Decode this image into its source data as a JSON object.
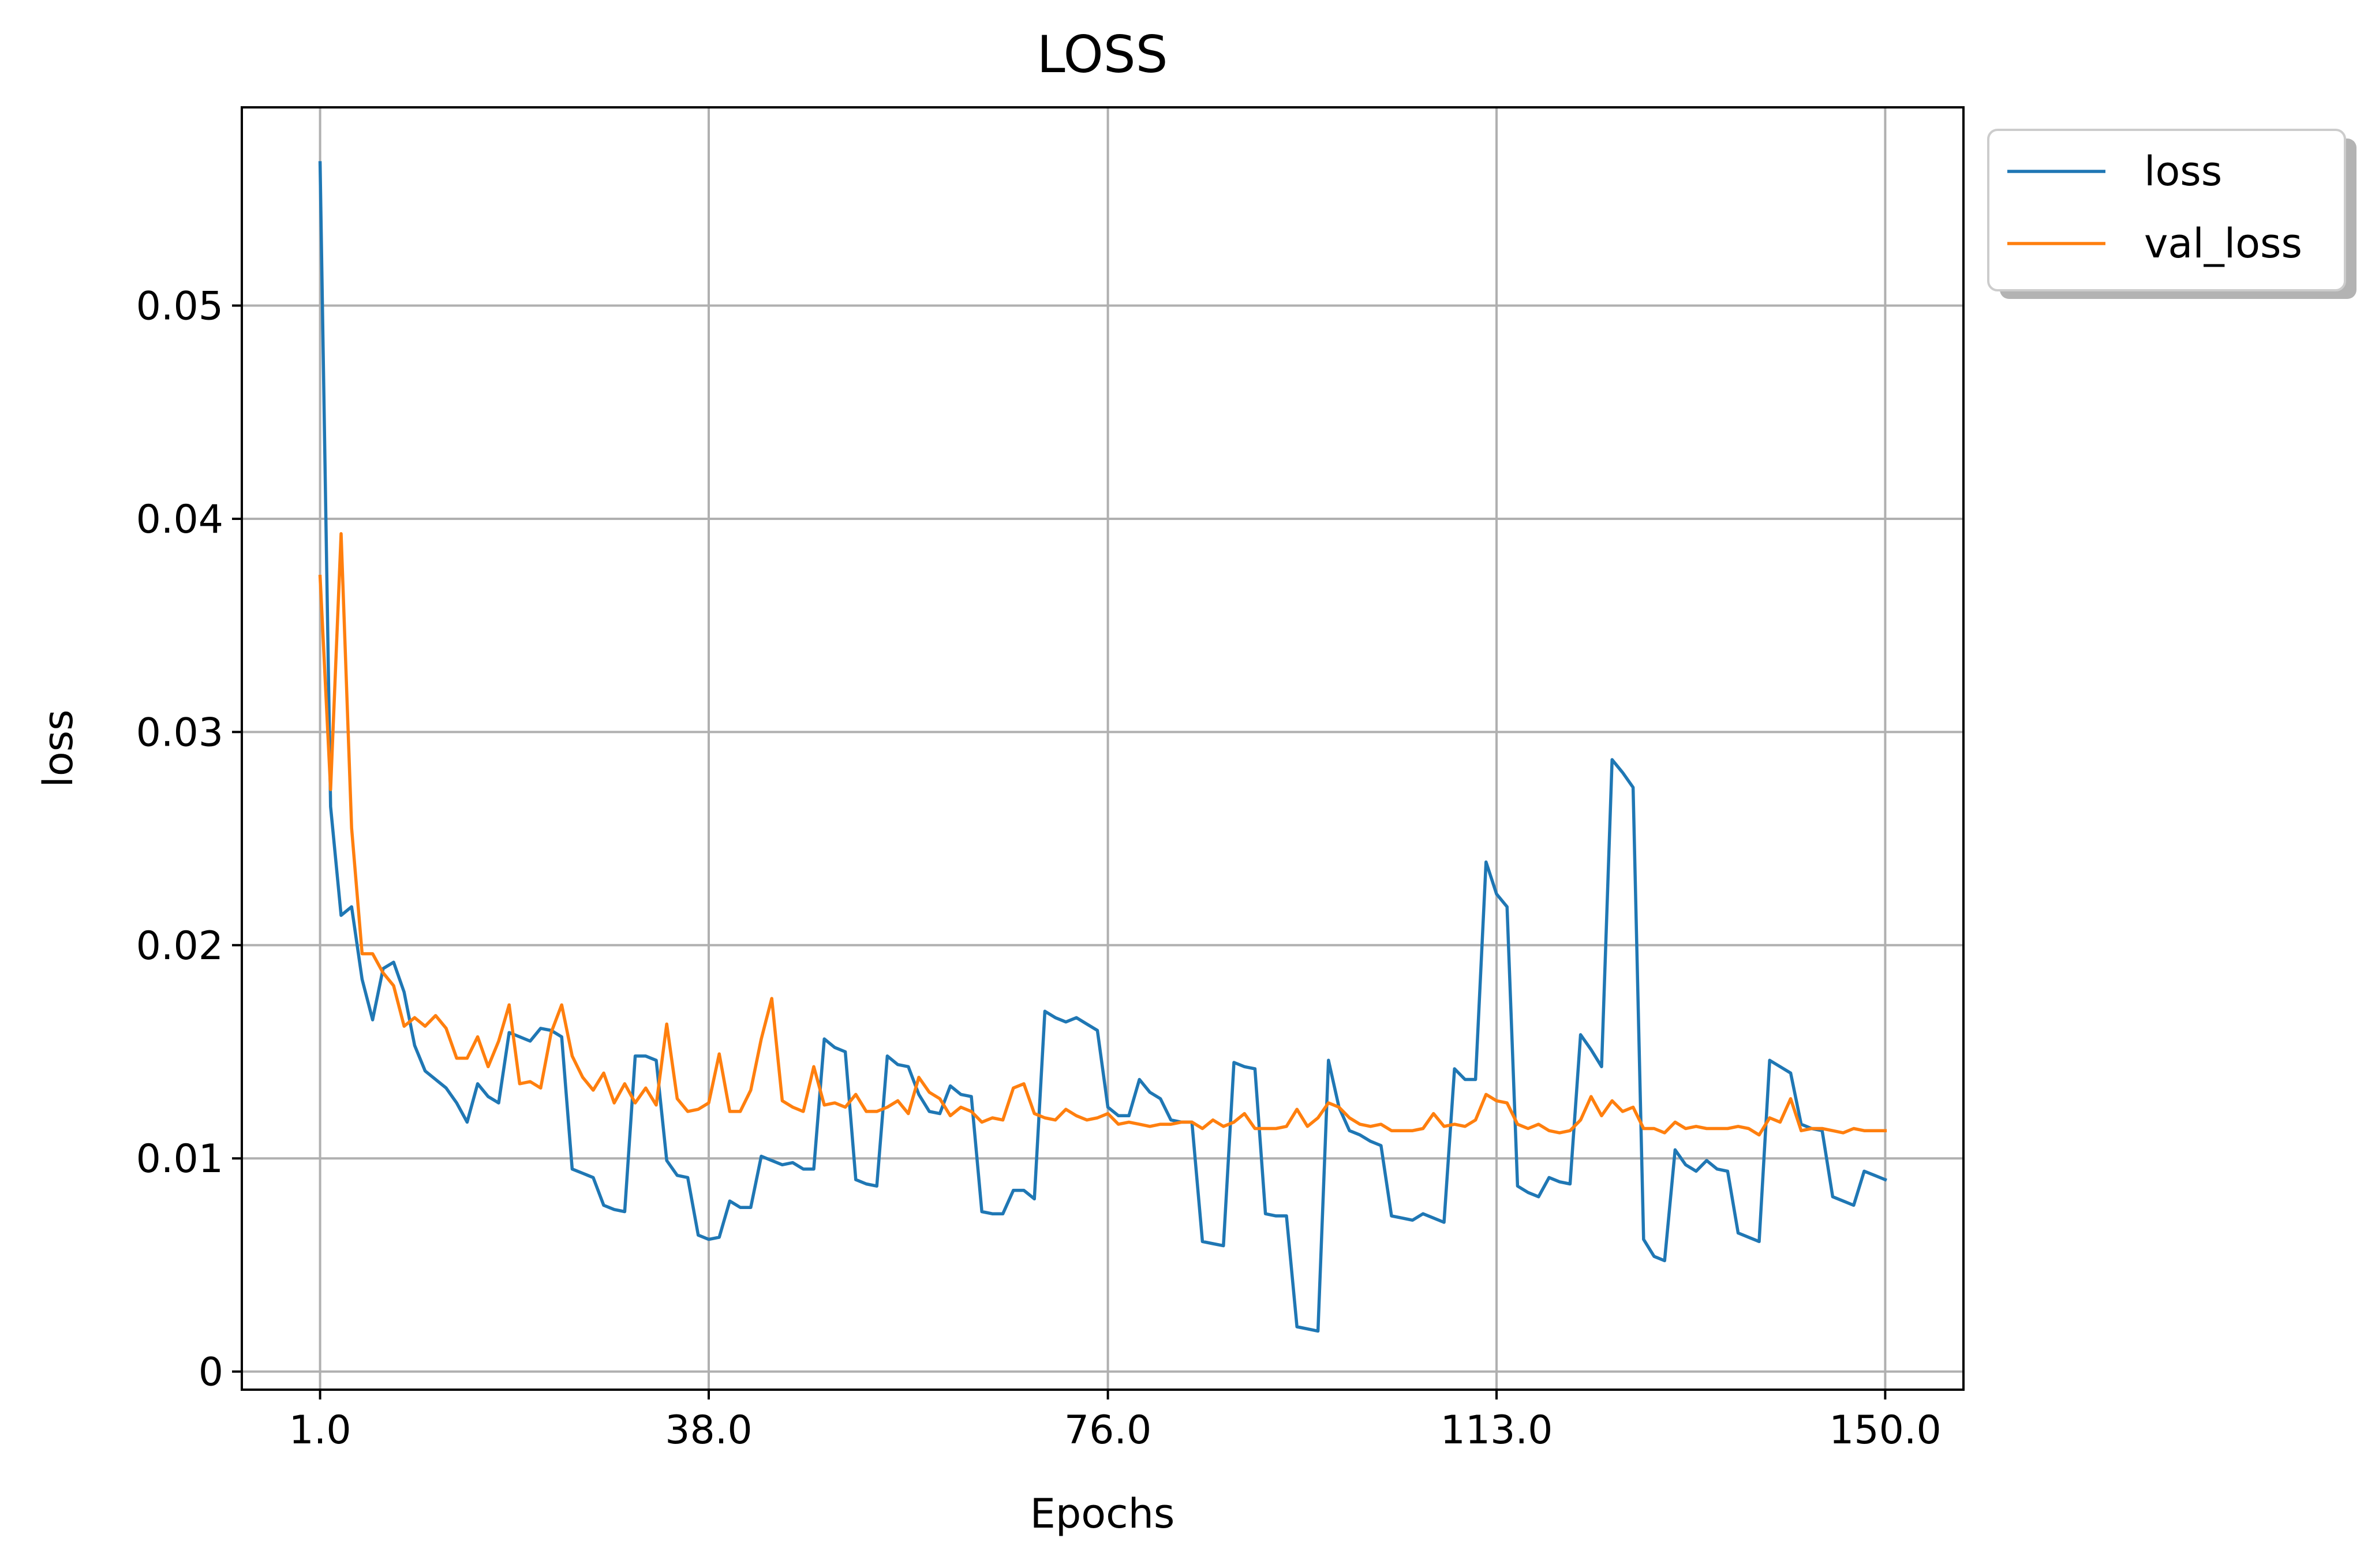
{
  "chart_data": {
    "type": "line",
    "title": "LOSS",
    "xlabel": "Epochs",
    "ylabel": "loss",
    "xlim": [
      -6.45,
      157.45
    ],
    "ylim": [
      -0.00085,
      0.0593
    ],
    "xticks": [
      1,
      38,
      76,
      113,
      150
    ],
    "xtick_labels": [
      "1.0",
      "38.0",
      "76.0",
      "113.0",
      "150.0"
    ],
    "yticks": [
      0,
      0.01,
      0.02,
      0.03,
      0.04,
      0.05
    ],
    "ytick_labels": [
      "0",
      "0.01",
      "0.02",
      "0.03",
      "0.04",
      "0.05"
    ],
    "grid": true,
    "legend_position": "outside-top-right",
    "series": [
      {
        "name": "loss",
        "color": "#1f77b4",
        "x": [
          1,
          2,
          3,
          4,
          5,
          6,
          7,
          8,
          9,
          10,
          11,
          12,
          13,
          14,
          15,
          16,
          17,
          18,
          19,
          20,
          21,
          22,
          23,
          24,
          25,
          26,
          27,
          28,
          29,
          30,
          31,
          32,
          33,
          34,
          35,
          36,
          37,
          38,
          39,
          40,
          41,
          42,
          43,
          44,
          45,
          46,
          47,
          48,
          49,
          50,
          51,
          52,
          53,
          54,
          55,
          56,
          57,
          58,
          59,
          60,
          61,
          62,
          63,
          64,
          65,
          66,
          67,
          68,
          69,
          70,
          71,
          72,
          73,
          74,
          75,
          76,
          77,
          78,
          79,
          80,
          81,
          82,
          83,
          84,
          85,
          86,
          87,
          88,
          89,
          90,
          91,
          92,
          93,
          94,
          95,
          96,
          97,
          98,
          99,
          100,
          101,
          102,
          103,
          104,
          105,
          106,
          107,
          108,
          109,
          110,
          111,
          112,
          113,
          114,
          115,
          116,
          117,
          118,
          119,
          120,
          121,
          122,
          123,
          124,
          125,
          126,
          127,
          128,
          129,
          130,
          131,
          132,
          133,
          134,
          135,
          136,
          137,
          138,
          139,
          140,
          141,
          142,
          143,
          144,
          145,
          146,
          147,
          148,
          149,
          150
        ],
        "y": [
          0.0567,
          0.0265,
          0.0214,
          0.0218,
          0.0184,
          0.0165,
          0.0189,
          0.0192,
          0.0178,
          0.0153,
          0.0141,
          0.0137,
          0.0133,
          0.0126,
          0.0117,
          0.0135,
          0.0129,
          0.0126,
          0.0159,
          0.0157,
          0.0155,
          0.0161,
          0.016,
          0.0157,
          0.0095,
          0.0093,
          0.0091,
          0.0078,
          0.0076,
          0.0075,
          0.0148,
          0.0148,
          0.0146,
          0.0099,
          0.0092,
          0.0091,
          0.0064,
          0.0062,
          0.0063,
          0.008,
          0.0077,
          0.0077,
          0.0101,
          0.0099,
          0.0097,
          0.0098,
          0.0095,
          0.0095,
          0.0156,
          0.0152,
          0.015,
          0.009,
          0.0088,
          0.0087,
          0.0148,
          0.0144,
          0.0143,
          0.013,
          0.0122,
          0.0121,
          0.0134,
          0.013,
          0.0129,
          0.0075,
          0.0074,
          0.0074,
          0.0085,
          0.0085,
          0.0081,
          0.0169,
          0.0166,
          0.0164,
          0.0166,
          0.0163,
          0.016,
          0.0124,
          0.012,
          0.012,
          0.0137,
          0.0131,
          0.0128,
          0.0118,
          0.0117,
          0.0117,
          0.0061,
          0.006,
          0.0059,
          0.0145,
          0.0143,
          0.0142,
          0.0074,
          0.0073,
          0.0073,
          0.0021,
          0.002,
          0.0019,
          0.0146,
          0.0124,
          0.0113,
          0.0111,
          0.0108,
          0.0106,
          0.0073,
          0.0072,
          0.0071,
          0.0074,
          0.0072,
          0.007,
          0.0142,
          0.0137,
          0.0137,
          0.0239,
          0.0224,
          0.0218,
          0.0087,
          0.0084,
          0.0082,
          0.0091,
          0.0089,
          0.0088,
          0.0158,
          0.0151,
          0.0143,
          0.0287,
          0.0281,
          0.0274,
          0.0062,
          0.0054,
          0.0052,
          0.0104,
          0.0097,
          0.0094,
          0.0099,
          0.0095,
          0.0094,
          0.0065,
          0.0063,
          0.0061,
          0.0146,
          0.0143,
          0.014,
          0.0116,
          0.0114,
          0.0113,
          0.0082,
          0.008,
          0.0078,
          0.0094,
          0.0092,
          0.009
        ]
      },
      {
        "name": "val_loss",
        "color": "#ff7f0e",
        "x": [
          1,
          2,
          3,
          4,
          5,
          6,
          7,
          8,
          9,
          10,
          11,
          12,
          13,
          14,
          15,
          16,
          17,
          18,
          19,
          20,
          21,
          22,
          23,
          24,
          25,
          26,
          27,
          28,
          29,
          30,
          31,
          32,
          33,
          34,
          35,
          36,
          37,
          38,
          39,
          40,
          41,
          42,
          43,
          44,
          45,
          46,
          47,
          48,
          49,
          50,
          51,
          52,
          53,
          54,
          55,
          56,
          57,
          58,
          59,
          60,
          61,
          62,
          63,
          64,
          65,
          66,
          67,
          68,
          69,
          70,
          71,
          72,
          73,
          74,
          75,
          76,
          77,
          78,
          79,
          80,
          81,
          82,
          83,
          84,
          85,
          86,
          87,
          88,
          89,
          90,
          91,
          92,
          93,
          94,
          95,
          96,
          97,
          98,
          99,
          100,
          101,
          102,
          103,
          104,
          105,
          106,
          107,
          108,
          109,
          110,
          111,
          112,
          113,
          114,
          115,
          116,
          117,
          118,
          119,
          120,
          121,
          122,
          123,
          124,
          125,
          126,
          127,
          128,
          129,
          130,
          131,
          132,
          133,
          134,
          135,
          136,
          137,
          138,
          139,
          140,
          141,
          142,
          143,
          144,
          145,
          146,
          147,
          148,
          149,
          150
        ],
        "y": [
          0.0373,
          0.0273,
          0.0393,
          0.0255,
          0.0196,
          0.0196,
          0.0187,
          0.0181,
          0.0162,
          0.0166,
          0.0162,
          0.0167,
          0.0161,
          0.0147,
          0.0147,
          0.0157,
          0.0143,
          0.0155,
          0.0172,
          0.0135,
          0.0136,
          0.0133,
          0.0159,
          0.0172,
          0.0148,
          0.0138,
          0.0132,
          0.014,
          0.0126,
          0.0135,
          0.0126,
          0.0133,
          0.0125,
          0.0163,
          0.0128,
          0.0122,
          0.0123,
          0.0126,
          0.0149,
          0.0122,
          0.0122,
          0.0132,
          0.0156,
          0.0175,
          0.0127,
          0.0124,
          0.0122,
          0.0143,
          0.0125,
          0.0126,
          0.0124,
          0.013,
          0.0122,
          0.0122,
          0.0124,
          0.0127,
          0.0121,
          0.0138,
          0.0131,
          0.0128,
          0.012,
          0.0124,
          0.0122,
          0.0117,
          0.0119,
          0.0118,
          0.0133,
          0.0135,
          0.0121,
          0.0119,
          0.0118,
          0.0123,
          0.012,
          0.0118,
          0.0119,
          0.0121,
          0.0116,
          0.0117,
          0.0116,
          0.0115,
          0.0116,
          0.0116,
          0.0117,
          0.0117,
          0.0114,
          0.0118,
          0.0115,
          0.0117,
          0.0121,
          0.0114,
          0.0114,
          0.0114,
          0.0115,
          0.0123,
          0.0115,
          0.0119,
          0.0126,
          0.0124,
          0.0119,
          0.0116,
          0.0115,
          0.0116,
          0.0113,
          0.0113,
          0.0113,
          0.0114,
          0.0121,
          0.0115,
          0.0116,
          0.0115,
          0.0118,
          0.013,
          0.0127,
          0.0126,
          0.0116,
          0.0114,
          0.0116,
          0.0113,
          0.0112,
          0.0113,
          0.0118,
          0.0129,
          0.012,
          0.0127,
          0.0122,
          0.0124,
          0.0114,
          0.0114,
          0.0112,
          0.0117,
          0.0114,
          0.0115,
          0.0114,
          0.0114,
          0.0114,
          0.0115,
          0.0114,
          0.0111,
          0.0119,
          0.0117,
          0.0128,
          0.0113,
          0.0114,
          0.0114,
          0.0113,
          0.0112,
          0.0114,
          0.0113,
          0.0113,
          0.0113
        ]
      }
    ]
  }
}
